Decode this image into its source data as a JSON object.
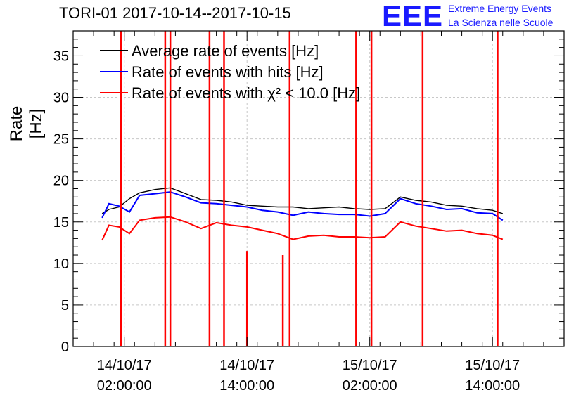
{
  "header": {
    "title": "TORI-01 2017-10-14--2017-10-15",
    "logo_text": "EEE",
    "logo_line1": "Extreme Energy Events",
    "logo_line2": "La Scienza nelle Scuole"
  },
  "colors": {
    "average": "#000000",
    "hits": "#0000ff",
    "chi2": "#ff0000",
    "grid": "#c8c8c8"
  },
  "chart_data": {
    "type": "line",
    "title": "TORI-01 2017-10-14--2017-10-15",
    "ylabel": "Rate [Hz]",
    "xlabel": "",
    "ylim": [
      0,
      38
    ],
    "yticks": [
      0,
      5,
      10,
      15,
      20,
      25,
      30,
      35
    ],
    "xlim": [
      "2017-10-13 21:00",
      "2017-10-15 21:00"
    ],
    "xticks": [
      {
        "date": "14/10/17",
        "time": "02:00:00"
      },
      {
        "date": "14/10/17",
        "time": "14:00:00"
      },
      {
        "date": "15/10/17",
        "time": "02:00:00"
      },
      {
        "date": "15/10/17",
        "time": "14:00:00"
      }
    ],
    "grid": true,
    "legend_position": "top-left",
    "series": [
      {
        "name": "Average rate of events [Hz]",
        "color": "#000000",
        "points": [
          [
            "2017-10-13 23:50",
            16.0
          ],
          [
            "2017-10-14 00:30",
            16.5
          ],
          [
            "2017-10-14 01:30",
            16.8
          ],
          [
            "2017-10-14 02:30",
            17.8
          ],
          [
            "2017-10-14 03:30",
            18.5
          ],
          [
            "2017-10-14 05:00",
            18.9
          ],
          [
            "2017-10-14 06:30",
            19.1
          ],
          [
            "2017-10-14 08:00",
            18.4
          ],
          [
            "2017-10-14 09:30",
            17.7
          ],
          [
            "2017-10-14 11:00",
            17.6
          ],
          [
            "2017-10-14 12:30",
            17.4
          ],
          [
            "2017-10-14 14:00",
            17.0
          ],
          [
            "2017-10-14 15:30",
            16.9
          ],
          [
            "2017-10-14 17:00",
            16.8
          ],
          [
            "2017-10-14 18:30",
            16.8
          ],
          [
            "2017-10-14 20:00",
            16.6
          ],
          [
            "2017-10-14 21:30",
            16.7
          ],
          [
            "2017-10-14 23:00",
            16.8
          ],
          [
            "2017-10-15 00:30",
            16.6
          ],
          [
            "2017-10-15 02:00",
            16.5
          ],
          [
            "2017-10-15 03:30",
            16.6
          ],
          [
            "2017-10-15 05:00",
            18.0
          ],
          [
            "2017-10-15 06:30",
            17.6
          ],
          [
            "2017-10-15 08:00",
            17.4
          ],
          [
            "2017-10-15 09:30",
            17.0
          ],
          [
            "2017-10-15 11:00",
            16.9
          ],
          [
            "2017-10-15 12:30",
            16.6
          ],
          [
            "2017-10-15 14:00",
            16.4
          ],
          [
            "2017-10-15 15:00",
            16.0
          ]
        ]
      },
      {
        "name": "Rate of events with hits [Hz]",
        "color": "#0000ff",
        "points": [
          [
            "2017-10-13 23:50",
            15.5
          ],
          [
            "2017-10-14 00:30",
            17.2
          ],
          [
            "2017-10-14 01:30",
            16.9
          ],
          [
            "2017-10-14 02:30",
            16.2
          ],
          [
            "2017-10-14 03:30",
            18.2
          ],
          [
            "2017-10-14 05:00",
            18.4
          ],
          [
            "2017-10-14 06:30",
            18.6
          ],
          [
            "2017-10-14 08:00",
            18.0
          ],
          [
            "2017-10-14 09:30",
            17.3
          ],
          [
            "2017-10-14 11:00",
            17.2
          ],
          [
            "2017-10-14 12:30",
            17.0
          ],
          [
            "2017-10-14 14:00",
            16.8
          ],
          [
            "2017-10-14 15:30",
            16.4
          ],
          [
            "2017-10-14 17:00",
            16.2
          ],
          [
            "2017-10-14 18:30",
            15.8
          ],
          [
            "2017-10-14 20:00",
            16.2
          ],
          [
            "2017-10-14 21:30",
            16.0
          ],
          [
            "2017-10-14 23:00",
            15.9
          ],
          [
            "2017-10-15 00:30",
            15.9
          ],
          [
            "2017-10-15 02:00",
            15.7
          ],
          [
            "2017-10-15 03:30",
            16.0
          ],
          [
            "2017-10-15 05:00",
            17.8
          ],
          [
            "2017-10-15 06:30",
            17.2
          ],
          [
            "2017-10-15 08:00",
            16.9
          ],
          [
            "2017-10-15 09:30",
            16.5
          ],
          [
            "2017-10-15 11:00",
            16.6
          ],
          [
            "2017-10-15 12:30",
            16.1
          ],
          [
            "2017-10-15 14:00",
            16.0
          ],
          [
            "2017-10-15 15:00",
            15.2
          ]
        ]
      },
      {
        "name": "Rate of events with χ² < 10.0 [Hz]",
        "color": "#ff0000",
        "points": [
          [
            "2017-10-13 23:50",
            12.8
          ],
          [
            "2017-10-14 00:30",
            14.6
          ],
          [
            "2017-10-14 01:30",
            14.4
          ],
          [
            "2017-10-14 02:30",
            13.6
          ],
          [
            "2017-10-14 03:30",
            15.2
          ],
          [
            "2017-10-14 05:00",
            15.5
          ],
          [
            "2017-10-14 06:30",
            15.6
          ],
          [
            "2017-10-14 08:00",
            15.0
          ],
          [
            "2017-10-14 09:30",
            14.2
          ],
          [
            "2017-10-14 11:00",
            14.9
          ],
          [
            "2017-10-14 12:30",
            14.6
          ],
          [
            "2017-10-14 14:00",
            14.4
          ],
          [
            "2017-10-14 15:30",
            14.0
          ],
          [
            "2017-10-14 17:00",
            13.6
          ],
          [
            "2017-10-14 18:30",
            12.9
          ],
          [
            "2017-10-14 20:00",
            13.3
          ],
          [
            "2017-10-14 21:30",
            13.4
          ],
          [
            "2017-10-14 23:00",
            13.2
          ],
          [
            "2017-10-15 00:30",
            13.2
          ],
          [
            "2017-10-15 02:00",
            13.1
          ],
          [
            "2017-10-15 03:30",
            13.2
          ],
          [
            "2017-10-15 05:00",
            15.0
          ],
          [
            "2017-10-15 06:30",
            14.5
          ],
          [
            "2017-10-15 08:00",
            14.2
          ],
          [
            "2017-10-15 09:30",
            13.9
          ],
          [
            "2017-10-15 11:00",
            14.0
          ],
          [
            "2017-10-15 12:30",
            13.6
          ],
          [
            "2017-10-15 14:00",
            13.4
          ],
          [
            "2017-10-15 15:00",
            12.9
          ]
        ]
      }
    ],
    "spikes": [
      {
        "time": "2017-10-14 01:40",
        "low": 0,
        "high": 38
      },
      {
        "time": "2017-10-14 06:00",
        "low": 0,
        "high": 38
      },
      {
        "time": "2017-10-14 06:30",
        "low": 0,
        "high": 38
      },
      {
        "time": "2017-10-14 10:20",
        "low": 0,
        "high": 38
      },
      {
        "time": "2017-10-14 11:45",
        "low": 0,
        "high": 38
      },
      {
        "time": "2017-10-14 14:00",
        "low": 0,
        "high": 11.5
      },
      {
        "time": "2017-10-14 17:30",
        "low": 0,
        "high": 11.0
      },
      {
        "time": "2017-10-14 18:10",
        "low": 0,
        "high": 38
      },
      {
        "time": "2017-10-15 00:40",
        "low": 0,
        "high": 38
      },
      {
        "time": "2017-10-15 02:10",
        "low": 0,
        "high": 38
      },
      {
        "time": "2017-10-15 07:10",
        "low": 0,
        "high": 38
      },
      {
        "time": "2017-10-15 14:30",
        "low": 0,
        "high": 38
      }
    ]
  }
}
